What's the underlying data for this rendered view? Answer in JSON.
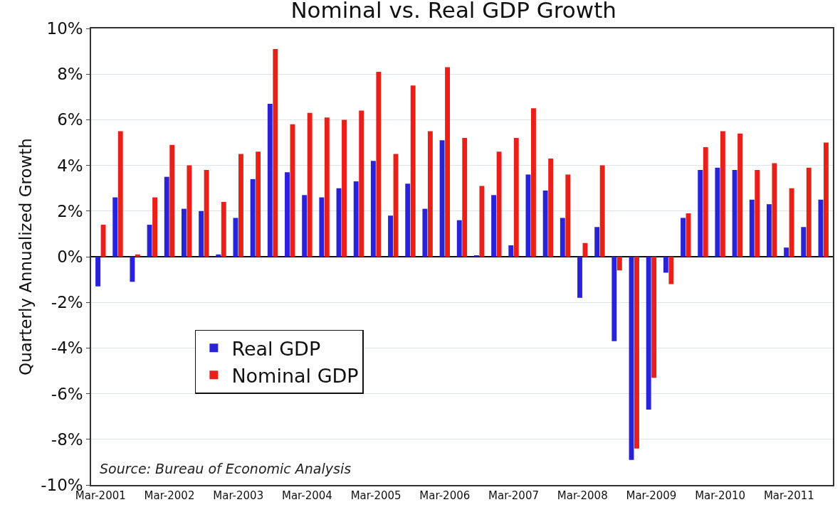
{
  "chart_data": {
    "type": "bar",
    "title": "Nominal vs. Real GDP Growth",
    "ylabel": "Quarterly Annualized Growth",
    "categories": [
      "Mar-2001",
      null,
      null,
      null,
      "Mar-2002",
      null,
      null,
      null,
      "Mar-2003",
      null,
      null,
      null,
      "Mar-2004",
      null,
      null,
      null,
      "Mar-2005",
      null,
      null,
      null,
      "Mar-2006",
      null,
      null,
      null,
      "Mar-2007",
      null,
      null,
      null,
      "Mar-2008",
      null,
      null,
      null,
      "Mar-2009",
      null,
      null,
      null,
      "Mar-2010",
      null,
      null,
      null,
      "Mar-2011",
      null,
      null
    ],
    "series": [
      {
        "name": "Real GDP",
        "color": "#2a22d8",
        "values": [
          -1.3,
          2.6,
          -1.1,
          1.4,
          3.5,
          2.1,
          2.0,
          0.1,
          1.7,
          3.4,
          6.7,
          3.7,
          2.7,
          2.6,
          3.0,
          3.3,
          4.2,
          1.8,
          3.2,
          2.1,
          5.1,
          1.6,
          0.05,
          2.7,
          0.5,
          3.6,
          2.9,
          1.7,
          -1.8,
          1.3,
          -3.7,
          -8.9,
          -6.7,
          -0.7,
          1.7,
          3.8,
          3.9,
          3.8,
          2.5,
          2.3,
          0.4,
          1.3,
          2.5
        ]
      },
      {
        "name": "Nominal GDP",
        "color": "#e8201a",
        "values": [
          1.4,
          5.5,
          0.1,
          2.6,
          4.9,
          4.0,
          3.8,
          2.4,
          4.5,
          4.6,
          9.1,
          5.8,
          6.3,
          6.1,
          6.0,
          6.4,
          8.1,
          4.5,
          7.5,
          5.5,
          8.3,
          5.2,
          3.1,
          4.6,
          5.2,
          6.5,
          4.3,
          3.6,
          0.6,
          4.0,
          -0.6,
          -8.4,
          -5.3,
          -1.2,
          1.9,
          4.8,
          5.5,
          5.4,
          3.8,
          4.1,
          3.0,
          3.9,
          5.0
        ]
      }
    ],
    "ylim": [
      -10,
      10
    ],
    "yticks": [
      {
        "value": -10,
        "label": "-10%"
      },
      {
        "value": -8,
        "label": "-8%"
      },
      {
        "value": -6,
        "label": "-6%"
      },
      {
        "value": -4,
        "label": "-4%"
      },
      {
        "value": -2,
        "label": "-2%"
      },
      {
        "value": 0,
        "label": "0%"
      },
      {
        "value": 2,
        "label": "2%"
      },
      {
        "value": 4,
        "label": "4%"
      },
      {
        "value": 6,
        "label": "6%"
      },
      {
        "value": 8,
        "label": "8%"
      },
      {
        "value": 10,
        "label": "10%"
      }
    ],
    "grid": "y",
    "legend": "bottom left",
    "annotations": [
      "Source: Bureau of Economic Analysis"
    ]
  }
}
